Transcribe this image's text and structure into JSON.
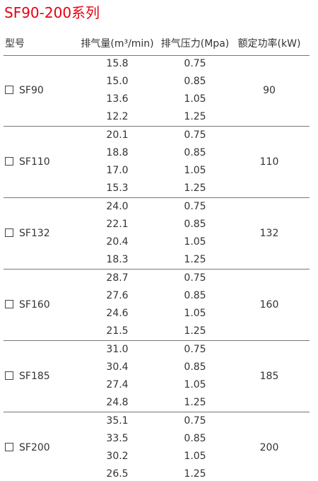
{
  "header": {
    "title": "SF90-200系列"
  },
  "table": {
    "columns": [
      "型号",
      "排气量(m³/min)",
      "排气压力(Mpa)",
      "额定功率(kW)"
    ],
    "groups": [
      {
        "model": "SF90",
        "power": "90",
        "rows": [
          [
            "15.8",
            "0.75"
          ],
          [
            "15.0",
            "0.85"
          ],
          [
            "13.6",
            "1.05"
          ],
          [
            "12.2",
            "1.25"
          ]
        ]
      },
      {
        "model": "SF110",
        "power": "110",
        "rows": [
          [
            "20.1",
            "0.75"
          ],
          [
            "18.8",
            "0.85"
          ],
          [
            "17.0",
            "1.05"
          ],
          [
            "15.3",
            "1.25"
          ]
        ]
      },
      {
        "model": "SF132",
        "power": "132",
        "rows": [
          [
            "24.0",
            "0.75"
          ],
          [
            "22.1",
            "0.85"
          ],
          [
            "20.4",
            "1.05"
          ],
          [
            "18.3",
            "1.25"
          ]
        ]
      },
      {
        "model": "SF160",
        "power": "160",
        "rows": [
          [
            "28.7",
            "0.75"
          ],
          [
            "27.6",
            "0.85"
          ],
          [
            "24.6",
            "1.05"
          ],
          [
            "21.5",
            "1.25"
          ]
        ]
      },
      {
        "model": "SF185",
        "power": "185",
        "rows": [
          [
            "31.0",
            "0.75"
          ],
          [
            "30.4",
            "0.85"
          ],
          [
            "27.4",
            "1.05"
          ],
          [
            "24.8",
            "1.25"
          ]
        ]
      },
      {
        "model": "SF200",
        "power": "200",
        "rows": [
          [
            "35.1",
            "0.75"
          ],
          [
            "33.5",
            "0.85"
          ],
          [
            "30.2",
            "1.05"
          ],
          [
            "26.5",
            "1.25"
          ]
        ]
      }
    ]
  }
}
